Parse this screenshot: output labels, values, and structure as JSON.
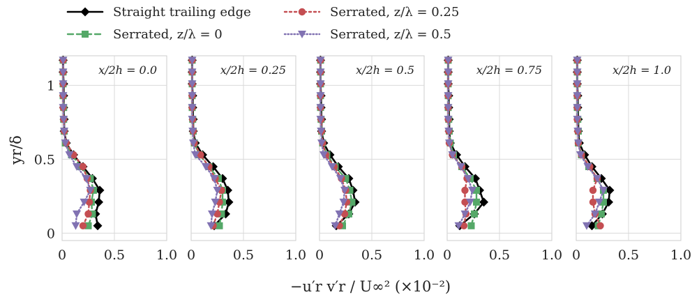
{
  "chart_data": {
    "type": "line",
    "legend_position": "top",
    "grid": true,
    "xlabel": "−u′r v′r / U∞²   (×10⁻²)",
    "ylabel": "yr/δ",
    "xlim": [
      0,
      1.0
    ],
    "ylim": [
      -0.05,
      1.2
    ],
    "x_ticks": [
      "0",
      "0.5",
      "1.0"
    ],
    "y_ticks": [
      "0",
      "0.5",
      "1"
    ],
    "series_style": [
      {
        "name": "Straight trailing edge",
        "color": "#000000",
        "marker": "diamond",
        "dash": "",
        "width": 2.6
      },
      {
        "name": "Serrated, z/λ = 0",
        "color": "#55a868",
        "marker": "square",
        "dash": "8,5",
        "width": 2.4
      },
      {
        "name": "Serrated, z/λ = 0.25",
        "color": "#c44e52",
        "marker": "circle",
        "dash": "3,4",
        "width": 2.4
      },
      {
        "name": "Serrated, z/λ = 0.5",
        "color": "#8172b2",
        "marker": "triangle",
        "dash": "1.5,3",
        "width": 2.4
      }
    ],
    "y": [
      0.05,
      0.13,
      0.21,
      0.29,
      0.37,
      0.45,
      0.53,
      0.61,
      0.69,
      0.77,
      0.85,
      0.93,
      1.01,
      1.09,
      1.17
    ],
    "panels": [
      {
        "label": "x/2h = 0.0",
        "series": [
          {
            "values": [
              0.34,
              0.32,
              0.35,
              0.36,
              0.29,
              0.2,
              0.11,
              0.04,
              0.02,
              0.02,
              0.015,
              0.015,
              0.015,
              0.01,
              0.01
            ]
          },
          {
            "values": [
              0.25,
              0.29,
              0.28,
              0.3,
              0.27,
              0.18,
              0.09,
              0.03,
              0.02,
              0.015,
              0.015,
              0.01,
              0.01,
              0.01,
              0.01
            ]
          },
          {
            "values": [
              0.2,
              0.25,
              0.26,
              0.27,
              0.24,
              0.2,
              0.11,
              0.04,
              0.02,
              0.015,
              0.01,
              0.01,
              0.01,
              0.01,
              0.01
            ]
          },
          {
            "values": [
              0.13,
              0.14,
              0.21,
              0.27,
              0.23,
              0.14,
              0.07,
              0.03,
              0.02,
              0.015,
              0.01,
              0.01,
              0.01,
              0.01,
              0.01
            ]
          }
        ]
      },
      {
        "label": "x/2h = 0.25",
        "series": [
          {
            "values": [
              0.22,
              0.33,
              0.36,
              0.35,
              0.3,
              0.21,
              0.11,
              0.04,
              0.02,
              0.02,
              0.015,
              0.015,
              0.01,
              0.01,
              0.01
            ]
          },
          {
            "values": [
              0.27,
              0.29,
              0.3,
              0.3,
              0.26,
              0.17,
              0.08,
              0.03,
              0.02,
              0.015,
              0.01,
              0.01,
              0.01,
              0.01,
              0.01
            ]
          },
          {
            "values": [
              0.21,
              0.25,
              0.27,
              0.29,
              0.23,
              0.17,
              0.09,
              0.03,
              0.02,
              0.015,
              0.01,
              0.01,
              0.01,
              0.01,
              0.01
            ]
          },
          {
            "values": [
              0.19,
              0.2,
              0.23,
              0.25,
              0.22,
              0.14,
              0.04,
              0.02,
              0.015,
              0.01,
              0.01,
              0.01,
              0.01,
              0.01,
              0.01
            ]
          }
        ]
      },
      {
        "label": "x/2h = 0.5",
        "series": [
          {
            "values": [
              0.16,
              0.28,
              0.34,
              0.32,
              0.28,
              0.18,
              0.1,
              0.04,
              0.02,
              0.02,
              0.015,
              0.015,
              0.01,
              0.01,
              0.01
            ]
          },
          {
            "values": [
              0.22,
              0.28,
              0.31,
              0.29,
              0.25,
              0.15,
              0.07,
              0.03,
              0.02,
              0.015,
              0.01,
              0.01,
              0.01,
              0.01,
              0.01
            ]
          },
          {
            "values": [
              0.19,
              0.24,
              0.26,
              0.25,
              0.21,
              0.14,
              0.06,
              0.03,
              0.02,
              0.015,
              0.01,
              0.01,
              0.01,
              0.01,
              0.01
            ]
          },
          {
            "values": [
              0.15,
              0.19,
              0.23,
              0.24,
              0.2,
              0.12,
              0.04,
              0.02,
              0.015,
              0.01,
              0.01,
              0.01,
              0.01,
              0.01,
              0.01
            ]
          }
        ]
      },
      {
        "label": "x/2h = 0.75",
        "series": [
          {
            "values": [
              0.12,
              0.26,
              0.35,
              0.31,
              0.27,
              0.17,
              0.09,
              0.03,
              0.02,
              0.02,
              0.015,
              0.015,
              0.01,
              0.01,
              0.01
            ]
          },
          {
            "values": [
              0.23,
              0.26,
              0.28,
              0.28,
              0.22,
              0.14,
              0.06,
              0.03,
              0.02,
              0.015,
              0.01,
              0.01,
              0.01,
              0.01,
              0.01
            ]
          },
          {
            "values": [
              0.16,
              0.18,
              0.17,
              0.17,
              0.19,
              0.14,
              0.05,
              0.02,
              0.015,
              0.01,
              0.01,
              0.01,
              0.01,
              0.01,
              0.01
            ]
          },
          {
            "values": [
              0.11,
              0.17,
              0.22,
              0.24,
              0.2,
              0.13,
              0.05,
              0.02,
              0.015,
              0.01,
              0.01,
              0.01,
              0.01,
              0.01,
              0.01
            ]
          }
        ]
      },
      {
        "label": "x/2h = 1.0",
        "series": [
          {
            "values": [
              0.15,
              0.25,
              0.31,
              0.32,
              0.24,
              0.15,
              0.08,
              0.03,
              0.02,
              0.02,
              0.015,
              0.015,
              0.01,
              0.01,
              0.01
            ]
          },
          {
            "values": [
              0.21,
              0.24,
              0.26,
              0.26,
              0.2,
              0.12,
              0.05,
              0.02,
              0.02,
              0.015,
              0.01,
              0.01,
              0.01,
              0.01,
              0.01
            ]
          },
          {
            "values": [
              0.23,
              0.18,
              0.16,
              0.16,
              0.2,
              0.13,
              0.05,
              0.02,
              0.015,
              0.01,
              0.01,
              0.01,
              0.01,
              0.01,
              0.01
            ]
          },
          {
            "values": [
              0.1,
              0.18,
              0.22,
              0.26,
              0.2,
              0.11,
              0.04,
              0.02,
              0.015,
              0.01,
              0.01,
              0.01,
              0.01,
              0.01,
              0.01
            ]
          }
        ]
      }
    ]
  }
}
